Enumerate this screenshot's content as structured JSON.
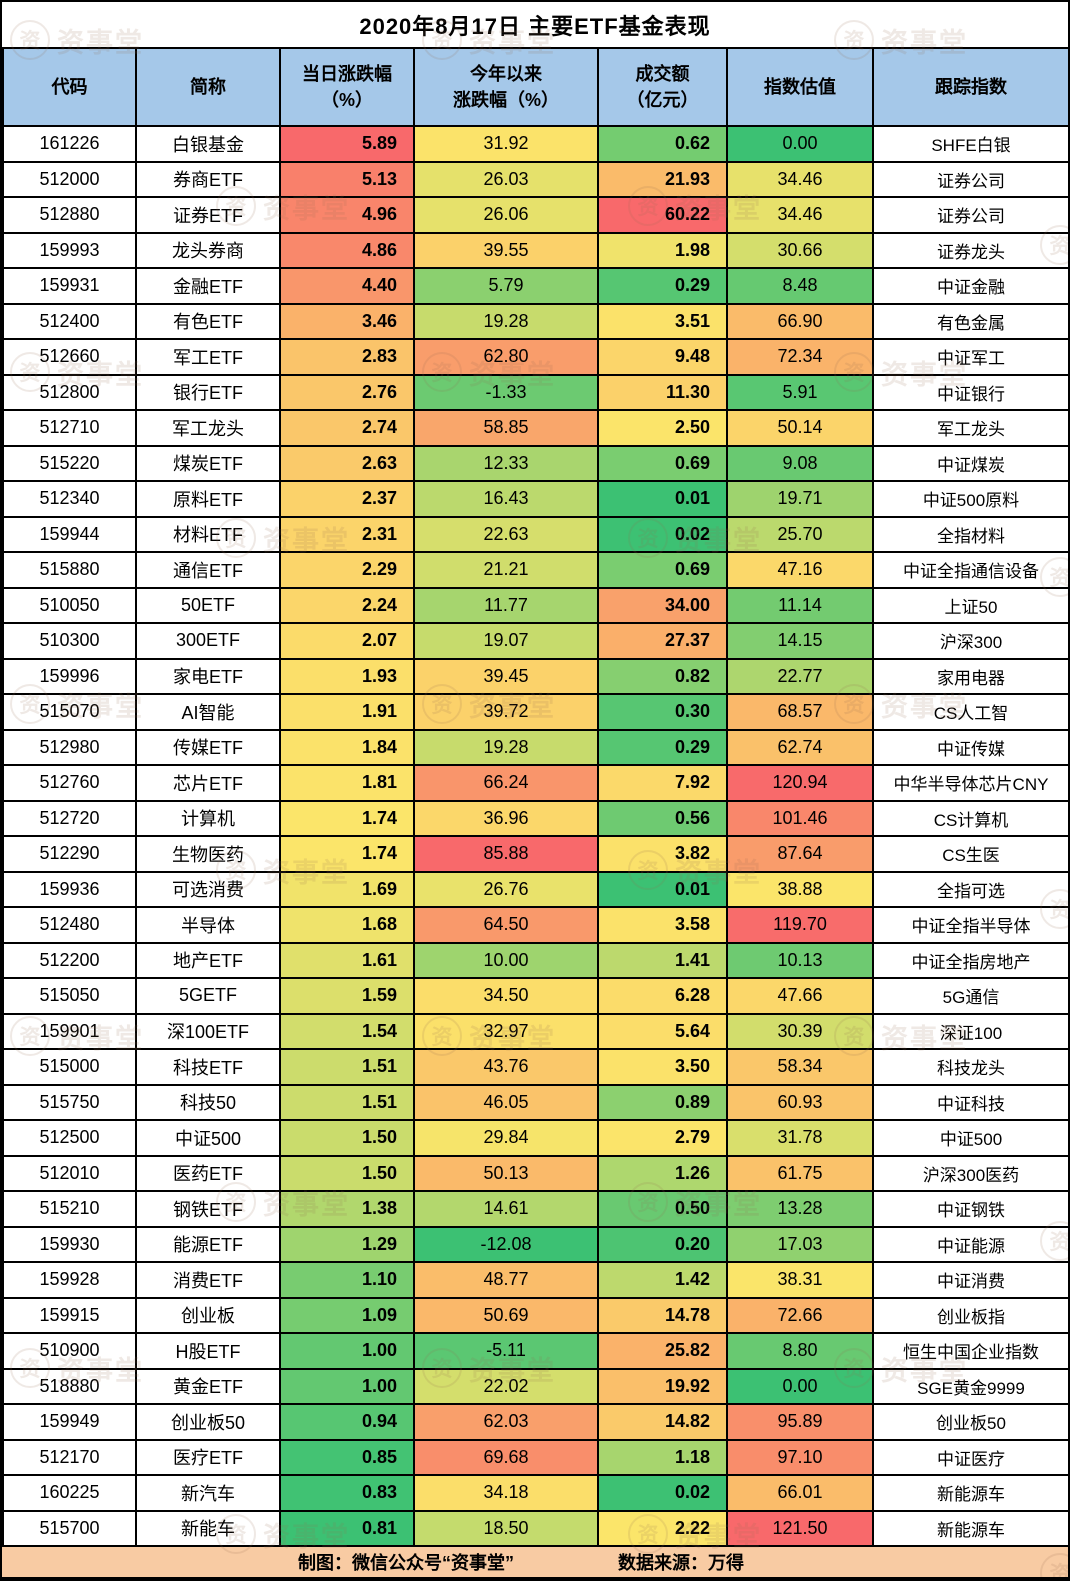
{
  "chart_data": {
    "type": "table",
    "title": "2020年8月17日 主要ETF基金表现",
    "columns": [
      {
        "key": "code",
        "label": "代码"
      },
      {
        "key": "name",
        "label": "简称"
      },
      {
        "key": "chg",
        "label": "当日涨跌幅\n（%）"
      },
      {
        "key": "ytd",
        "label": "今年以来\n涨跌幅（%）"
      },
      {
        "key": "turnover",
        "label": "成交额\n（亿元）"
      },
      {
        "key": "valuation",
        "label": "指数估值"
      },
      {
        "key": "index",
        "label": "跟踪指数"
      }
    ],
    "rows": [
      [
        "161226",
        "白银基金",
        "5.89",
        "31.92",
        "0.62",
        "0.00",
        "SHFE白银"
      ],
      [
        "512000",
        "券商ETF",
        "5.13",
        "26.03",
        "21.93",
        "34.46",
        "证券公司"
      ],
      [
        "512880",
        "证券ETF",
        "4.96",
        "26.06",
        "60.22",
        "34.46",
        "证券公司"
      ],
      [
        "159993",
        "龙头券商",
        "4.86",
        "39.55",
        "1.98",
        "30.66",
        "证券龙头"
      ],
      [
        "159931",
        "金融ETF",
        "4.40",
        "5.79",
        "0.29",
        "8.48",
        "中证金融"
      ],
      [
        "512400",
        "有色ETF",
        "3.46",
        "19.28",
        "3.51",
        "66.90",
        "有色金属"
      ],
      [
        "512660",
        "军工ETF",
        "2.83",
        "62.80",
        "9.48",
        "72.34",
        "中证军工"
      ],
      [
        "512800",
        "银行ETF",
        "2.76",
        "-1.33",
        "11.30",
        "5.91",
        "中证银行"
      ],
      [
        "512710",
        "军工龙头",
        "2.74",
        "58.85",
        "2.50",
        "50.14",
        "军工龙头"
      ],
      [
        "515220",
        "煤炭ETF",
        "2.63",
        "12.33",
        "0.69",
        "9.08",
        "中证煤炭"
      ],
      [
        "512340",
        "原料ETF",
        "2.37",
        "16.43",
        "0.01",
        "19.71",
        "中证500原料"
      ],
      [
        "159944",
        "材料ETF",
        "2.31",
        "22.63",
        "0.02",
        "25.70",
        "全指材料"
      ],
      [
        "515880",
        "通信ETF",
        "2.29",
        "21.21",
        "0.69",
        "47.16",
        "中证全指通信设备"
      ],
      [
        "510050",
        "50ETF",
        "2.24",
        "11.77",
        "34.00",
        "11.14",
        "上证50"
      ],
      [
        "510300",
        "300ETF",
        "2.07",
        "19.07",
        "27.37",
        "14.15",
        "沪深300"
      ],
      [
        "159996",
        "家电ETF",
        "1.93",
        "39.45",
        "0.82",
        "22.77",
        "家用电器"
      ],
      [
        "515070",
        "AI智能",
        "1.91",
        "39.72",
        "0.30",
        "68.57",
        "CS人工智"
      ],
      [
        "512980",
        "传媒ETF",
        "1.84",
        "19.28",
        "0.29",
        "62.74",
        "中证传媒"
      ],
      [
        "512760",
        "芯片ETF",
        "1.81",
        "66.24",
        "7.92",
        "120.94",
        "中华半导体芯片CNY"
      ],
      [
        "512720",
        "计算机",
        "1.74",
        "36.96",
        "0.56",
        "101.46",
        "CS计算机"
      ],
      [
        "512290",
        "生物医药",
        "1.74",
        "85.88",
        "3.82",
        "87.64",
        "CS生医"
      ],
      [
        "159936",
        "可选消费",
        "1.69",
        "26.76",
        "0.01",
        "38.88",
        "全指可选"
      ],
      [
        "512480",
        "半导体",
        "1.68",
        "64.50",
        "3.58",
        "119.70",
        "中证全指半导体"
      ],
      [
        "512200",
        "地产ETF",
        "1.61",
        "10.00",
        "1.41",
        "10.13",
        "中证全指房地产"
      ],
      [
        "515050",
        "5GETF",
        "1.59",
        "34.50",
        "6.28",
        "47.66",
        "5G通信"
      ],
      [
        "159901",
        "深100ETF",
        "1.54",
        "32.97",
        "5.64",
        "30.39",
        "深证100"
      ],
      [
        "515000",
        "科技ETF",
        "1.51",
        "43.76",
        "3.50",
        "58.34",
        "科技龙头"
      ],
      [
        "515750",
        "科技50",
        "1.51",
        "46.05",
        "0.89",
        "60.93",
        "中证科技"
      ],
      [
        "512500",
        "中证500",
        "1.50",
        "29.84",
        "2.79",
        "31.78",
        "中证500"
      ],
      [
        "512010",
        "医药ETF",
        "1.50",
        "50.13",
        "1.26",
        "61.75",
        "沪深300医药"
      ],
      [
        "515210",
        "钢铁ETF",
        "1.38",
        "14.61",
        "0.50",
        "13.28",
        "中证钢铁"
      ],
      [
        "159930",
        "能源ETF",
        "1.29",
        "-12.08",
        "0.20",
        "17.03",
        "中证能源"
      ],
      [
        "159928",
        "消费ETF",
        "1.10",
        "48.77",
        "1.42",
        "38.31",
        "中证消费"
      ],
      [
        "159915",
        "创业板",
        "1.09",
        "50.69",
        "14.78",
        "72.66",
        "创业板指"
      ],
      [
        "510900",
        "H股ETF",
        "1.00",
        "-5.11",
        "25.82",
        "8.80",
        "恒生中国企业指数"
      ],
      [
        "518880",
        "黄金ETF",
        "1.00",
        "22.02",
        "19.92",
        "0.00",
        "SGE黄金9999"
      ],
      [
        "159949",
        "创业板50",
        "0.94",
        "62.03",
        "14.82",
        "95.89",
        "创业板50"
      ],
      [
        "512170",
        "医疗ETF",
        "0.85",
        "69.68",
        "1.18",
        "97.10",
        "中证医疗"
      ],
      [
        "160225",
        "新汽车",
        "0.83",
        "34.18",
        "0.02",
        "66.01",
        "新能源车"
      ],
      [
        "515700",
        "新能车",
        "0.81",
        "18.50",
        "2.22",
        "121.50",
        "新能源车"
      ]
    ],
    "color_scale": {
      "low": "#3CC173",
      "mid": "#FBE56A",
      "high": "#F8696B",
      "midpoint": "median",
      "note": "3-color heat scale applied per numeric column: column min = green, column median = yellow, column max = red"
    }
  },
  "footer": {
    "credit": "制图：微信公众号“资事堂”",
    "source": "数据来源：万得"
  },
  "watermark": {
    "logo_char": "资",
    "text": "资事堂"
  },
  "colors": {
    "header_bg": "#A5C8E9",
    "footer_bg": "#F8CBA3",
    "border": "#000000",
    "background": "#FFFFFF",
    "text": "#000000",
    "watermark": "rgba(150,108,80,0.15)"
  }
}
